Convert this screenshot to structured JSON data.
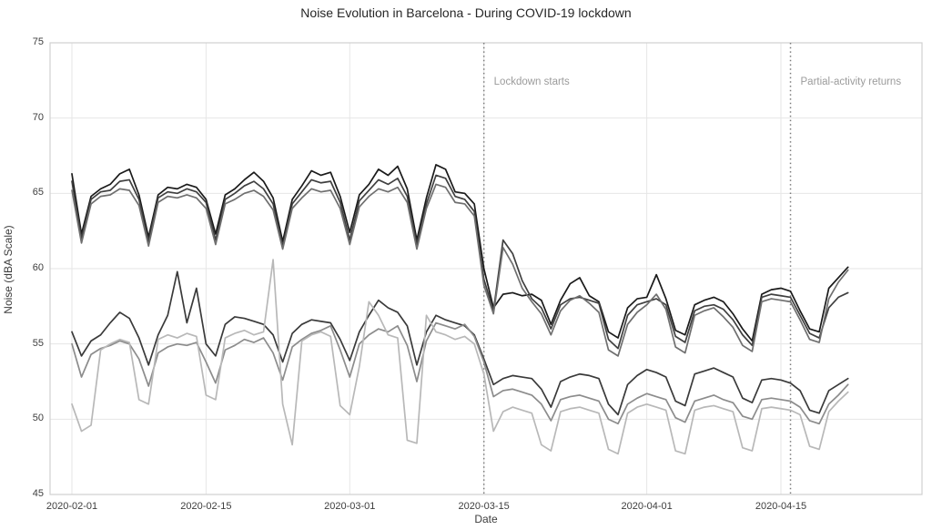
{
  "header": {
    "title": "Noise Evolution in Barcelona - During COVID-19 lockdown"
  },
  "axes": {
    "xlabel": "Date",
    "ylabel": "Noise (dBA Scale)",
    "yticks": [
      45,
      50,
      55,
      60,
      65,
      70,
      75
    ],
    "xticks": [
      {
        "label": "2020-02-01",
        "day": 0
      },
      {
        "label": "2020-02-15",
        "day": 14
      },
      {
        "label": "2020-03-01",
        "day": 29
      },
      {
        "label": "2020-03-15",
        "day": 43
      },
      {
        "label": "2020-04-01",
        "day": 60
      },
      {
        "label": "2020-04-15",
        "day": 74
      }
    ]
  },
  "chart_data": {
    "type": "line",
    "title": "Noise Evolution in Barcelona - During COVID-19 lockdown",
    "xlabel": "Date",
    "ylabel": "Noise (dBA Scale)",
    "ylim": [
      45,
      75
    ],
    "grid": true,
    "legend": "none",
    "x_start_date": "2020-02-01",
    "x_end_date": "2020-04-22",
    "x_interval": "daily",
    "vlines": [
      {
        "date": "2020-03-15",
        "day": 43,
        "label": "Lockdown starts",
        "style": "dotted",
        "color": "#7a7a7a"
      },
      {
        "date": "2020-04-16",
        "day": 75,
        "label": "Partial-activity returns",
        "style": "dotted",
        "color": "#7a7a7a"
      }
    ],
    "series": [
      {
        "name": "series-1",
        "group": "upper",
        "color": "#1a1a1a",
        "values": [
          66.3,
          62.3,
          64.8,
          65.3,
          65.6,
          66.3,
          66.6,
          64.9,
          62.1,
          64.9,
          65.4,
          65.3,
          65.6,
          65.4,
          64.6,
          62.3,
          64.9,
          65.3,
          65.9,
          66.4,
          65.8,
          64.7,
          61.8,
          64.6,
          65.5,
          66.5,
          66.2,
          66.4,
          64.8,
          62.4,
          64.9,
          65.6,
          66.6,
          66.2,
          66.8,
          65.3,
          61.9,
          64.7,
          66.9,
          66.6,
          65.1,
          65.0,
          64.3,
          60.0,
          57.4,
          58.3,
          58.4,
          58.2,
          58.3,
          57.9,
          56.3,
          57.9,
          59.0,
          59.4,
          58.2,
          57.8,
          55.8,
          55.4,
          57.4,
          58.0,
          58.1,
          59.6,
          58.0,
          55.9,
          55.6,
          57.6,
          57.9,
          58.1,
          57.8,
          57.0,
          56.0,
          55.2,
          58.3,
          58.6,
          58.7,
          58.5,
          57.2,
          56.0,
          55.8,
          58.7,
          59.4,
          60.1
        ]
      },
      {
        "name": "series-2",
        "group": "upper",
        "color": "#404040",
        "values": [
          65.8,
          62.0,
          64.6,
          65.1,
          65.2,
          65.8,
          65.9,
          64.6,
          61.8,
          64.7,
          65.1,
          65.0,
          65.3,
          65.1,
          64.4,
          61.9,
          64.6,
          65.0,
          65.5,
          65.8,
          65.3,
          64.3,
          61.5,
          64.3,
          65.1,
          65.9,
          65.7,
          65.8,
          64.4,
          61.9,
          64.5,
          65.2,
          65.9,
          65.6,
          66.0,
          64.8,
          61.6,
          64.3,
          66.2,
          66.0,
          64.8,
          64.6,
          63.8,
          59.3,
          57.2,
          61.9,
          61.0,
          59.2,
          58.0,
          57.4,
          56.0,
          57.6,
          58.0,
          58.1,
          57.9,
          57.7,
          55.3,
          54.7,
          56.9,
          57.6,
          57.8,
          58.0,
          57.6,
          55.5,
          55.1,
          57.2,
          57.5,
          57.6,
          57.3,
          56.6,
          55.6,
          54.9,
          58.1,
          58.3,
          58.2,
          58.1,
          56.9,
          55.7,
          55.4,
          57.4,
          58.1,
          58.4
        ]
      },
      {
        "name": "series-3",
        "group": "upper",
        "color": "#6f6f6f",
        "values": [
          65.2,
          61.7,
          64.3,
          64.8,
          64.9,
          65.3,
          65.2,
          64.2,
          61.5,
          64.4,
          64.8,
          64.7,
          64.9,
          64.7,
          64.0,
          61.6,
          64.3,
          64.6,
          65.0,
          65.2,
          64.8,
          63.9,
          61.3,
          64.0,
          64.7,
          65.3,
          65.1,
          65.2,
          64.0,
          61.6,
          64.1,
          64.8,
          65.3,
          65.1,
          65.4,
          64.4,
          61.3,
          64.0,
          65.6,
          65.4,
          64.4,
          64.3,
          63.5,
          58.9,
          57.0,
          61.4,
          60.3,
          58.7,
          57.8,
          57.0,
          55.6,
          57.2,
          57.9,
          58.2,
          57.7,
          57.1,
          54.6,
          54.2,
          56.3,
          57.1,
          57.6,
          58.3,
          57.3,
          54.8,
          54.4,
          56.9,
          57.2,
          57.4,
          56.8,
          56.1,
          54.9,
          54.5,
          57.8,
          58.0,
          57.9,
          57.8,
          56.6,
          55.3,
          55.1,
          58.0,
          59.1,
          59.9
        ]
      },
      {
        "name": "series-4",
        "group": "lower",
        "color": "#3a3a3a",
        "values": [
          55.8,
          54.2,
          55.2,
          55.6,
          56.4,
          57.1,
          56.7,
          55.4,
          53.6,
          55.6,
          56.9,
          59.8,
          56.4,
          58.7,
          55.0,
          54.2,
          56.3,
          56.8,
          56.7,
          56.5,
          56.3,
          55.6,
          53.8,
          55.7,
          56.3,
          56.6,
          56.5,
          56.4,
          55.3,
          53.9,
          55.8,
          56.9,
          57.9,
          57.4,
          57.1,
          56.2,
          53.6,
          55.8,
          56.9,
          56.6,
          56.4,
          56.2,
          55.6,
          54.0,
          52.3,
          52.7,
          52.9,
          52.8,
          52.7,
          52.0,
          50.8,
          52.5,
          52.8,
          53.0,
          52.9,
          52.7,
          51.0,
          50.3,
          52.3,
          52.9,
          53.3,
          53.1,
          52.8,
          51.2,
          50.9,
          53.0,
          53.2,
          53.4,
          53.1,
          52.8,
          51.4,
          51.1,
          52.6,
          52.7,
          52.6,
          52.4,
          51.9,
          50.6,
          50.4,
          51.9,
          52.3,
          52.7
        ]
      },
      {
        "name": "series-5",
        "group": "lower",
        "color": "#8c8c8c",
        "values": [
          55.0,
          52.8,
          54.3,
          54.7,
          54.9,
          55.2,
          55.0,
          54.0,
          52.2,
          54.4,
          54.8,
          55.0,
          54.9,
          55.1,
          53.8,
          52.4,
          54.6,
          54.9,
          55.3,
          55.1,
          55.4,
          54.4,
          52.6,
          54.8,
          55.3,
          55.7,
          55.9,
          56.2,
          54.6,
          52.8,
          55.0,
          55.6,
          56.0,
          55.8,
          56.2,
          54.9,
          52.5,
          55.2,
          56.4,
          56.2,
          56.0,
          56.3,
          55.5,
          53.8,
          51.5,
          51.9,
          52.0,
          51.8,
          51.6,
          51.0,
          49.9,
          51.3,
          51.5,
          51.6,
          51.4,
          51.2,
          50.0,
          49.7,
          51.0,
          51.4,
          51.7,
          51.5,
          51.3,
          50.1,
          49.8,
          51.2,
          51.4,
          51.6,
          51.3,
          51.1,
          50.2,
          50.0,
          51.3,
          51.4,
          51.3,
          51.2,
          50.8,
          49.9,
          49.7,
          51.0,
          51.6,
          52.3
        ]
      },
      {
        "name": "series-6",
        "group": "lower",
        "color": "#b8b8b8",
        "values": [
          51.0,
          49.2,
          49.6,
          54.6,
          55.0,
          55.3,
          55.1,
          51.3,
          51.0,
          55.3,
          55.6,
          55.4,
          55.7,
          55.5,
          51.6,
          51.3,
          55.4,
          55.7,
          55.9,
          55.6,
          55.8,
          60.6,
          51.0,
          48.3,
          55.2,
          55.6,
          55.8,
          55.5,
          50.9,
          50.3,
          53.5,
          57.8,
          56.9,
          55.6,
          55.4,
          48.6,
          48.4,
          56.9,
          55.8,
          55.6,
          55.3,
          55.5,
          55.0,
          53.0,
          49.2,
          50.5,
          50.8,
          50.6,
          50.4,
          48.3,
          47.9,
          50.5,
          50.7,
          50.8,
          50.6,
          50.4,
          48.0,
          47.7,
          50.4,
          50.8,
          51.0,
          50.8,
          50.6,
          47.9,
          47.7,
          50.6,
          50.8,
          50.9,
          50.7,
          50.5,
          48.1,
          47.9,
          50.7,
          50.8,
          50.7,
          50.6,
          50.3,
          48.2,
          48.0,
          50.5,
          51.2,
          51.8
        ]
      }
    ]
  },
  "style": {
    "grid_color": "#e6e6e6",
    "spine_color": "#d0d0d0",
    "tick_color": "#3d3d3d",
    "annotation_color": "#9b9b9b",
    "background": "#ffffff"
  }
}
